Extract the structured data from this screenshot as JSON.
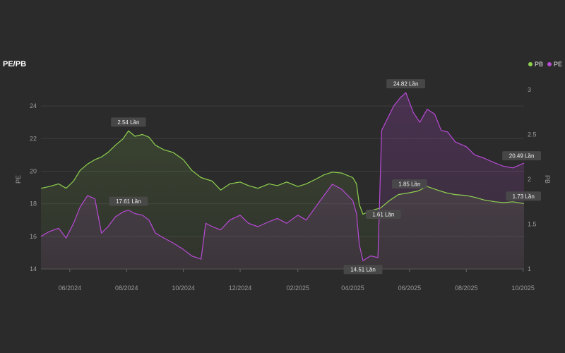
{
  "colors": {
    "background": "#2b2b2b",
    "pb": "#8fd14f",
    "pe": "#b84ad6",
    "grid": "#3d3d3d",
    "tick": "#9a9a9a",
    "annotation_bg": "#4a4a4a",
    "annotation_text": "#f0f0f0"
  },
  "chart_data": {
    "type": "area",
    "title": "PE/PB",
    "ylabel_left": "PE",
    "ylabel_right": "PB",
    "ylim_left": [
      14,
      25
    ],
    "ylim_right": [
      1,
      3
    ],
    "yticks_left": [
      "14",
      "16",
      "18",
      "20",
      "22",
      "24"
    ],
    "yticks_right": [
      "1",
      "1.5",
      "2",
      "2.5",
      "3"
    ],
    "x_range": [
      "2024-05-01",
      "2025-10-02"
    ],
    "xticks": [
      {
        "date": "2024-06-01",
        "label": "06/2024"
      },
      {
        "date": "2024-08-01",
        "label": "08/2024"
      },
      {
        "date": "2024-10-01",
        "label": "10/2024"
      },
      {
        "date": "2024-12-01",
        "label": "12/2024"
      },
      {
        "date": "2025-02-01",
        "label": "02/2025"
      },
      {
        "date": "2025-04-01",
        "label": "04/2025"
      },
      {
        "date": "2025-06-01",
        "label": "06/2025"
      },
      {
        "date": "2025-08-01",
        "label": "08/2025"
      },
      {
        "date": "2025-10-01",
        "label": "10/2025"
      }
    ],
    "grid": true,
    "legend_position": "top-right",
    "legend": [
      {
        "name": "PB",
        "color": "#8fd14f"
      },
      {
        "name": "PE",
        "color": "#b84ad6"
      }
    ],
    "series": [
      {
        "name": "PB",
        "axis": "right",
        "color": "#8fd14f",
        "points": [
          [
            "2024-05-01",
            1.9
          ],
          [
            "2024-05-10",
            1.92
          ],
          [
            "2024-05-20",
            1.95
          ],
          [
            "2024-05-28",
            1.9
          ],
          [
            "2024-06-05",
            1.98
          ],
          [
            "2024-06-12",
            2.1
          ],
          [
            "2024-06-20",
            2.17
          ],
          [
            "2024-06-28",
            2.22
          ],
          [
            "2024-07-05",
            2.25
          ],
          [
            "2024-07-12",
            2.3
          ],
          [
            "2024-07-20",
            2.38
          ],
          [
            "2024-07-28",
            2.45
          ],
          [
            "2024-08-03",
            2.54
          ],
          [
            "2024-08-10",
            2.48
          ],
          [
            "2024-08-18",
            2.5
          ],
          [
            "2024-08-25",
            2.47
          ],
          [
            "2024-09-01",
            2.38
          ],
          [
            "2024-09-10",
            2.33
          ],
          [
            "2024-09-20",
            2.3
          ],
          [
            "2024-10-01",
            2.22
          ],
          [
            "2024-10-10",
            2.1
          ],
          [
            "2024-10-20",
            2.02
          ],
          [
            "2024-11-01",
            1.98
          ],
          [
            "2024-11-10",
            1.88
          ],
          [
            "2024-11-20",
            1.95
          ],
          [
            "2024-12-01",
            1.97
          ],
          [
            "2024-12-10",
            1.93
          ],
          [
            "2024-12-20",
            1.9
          ],
          [
            "2025-01-01",
            1.95
          ],
          [
            "2025-01-10",
            1.93
          ],
          [
            "2025-01-20",
            1.97
          ],
          [
            "2025-02-01",
            1.92
          ],
          [
            "2025-02-10",
            1.95
          ],
          [
            "2025-02-20",
            2.0
          ],
          [
            "2025-03-01",
            2.05
          ],
          [
            "2025-03-10",
            2.08
          ],
          [
            "2025-03-20",
            2.07
          ],
          [
            "2025-04-01",
            2.02
          ],
          [
            "2025-04-05",
            1.95
          ],
          [
            "2025-04-08",
            1.72
          ],
          [
            "2025-04-12",
            1.61
          ],
          [
            "2025-04-20",
            1.65
          ],
          [
            "2025-05-01",
            1.68
          ],
          [
            "2025-05-10",
            1.76
          ],
          [
            "2025-05-20",
            1.83
          ],
          [
            "2025-06-01",
            1.85
          ],
          [
            "2025-06-10",
            1.87
          ],
          [
            "2025-06-20",
            1.92
          ],
          [
            "2025-07-01",
            1.88
          ],
          [
            "2025-07-10",
            1.85
          ],
          [
            "2025-07-20",
            1.83
          ],
          [
            "2025-08-01",
            1.82
          ],
          [
            "2025-08-10",
            1.8
          ],
          [
            "2025-08-20",
            1.77
          ],
          [
            "2025-09-01",
            1.75
          ],
          [
            "2025-09-10",
            1.74
          ],
          [
            "2025-09-20",
            1.75
          ],
          [
            "2025-10-02",
            1.73
          ]
        ]
      },
      {
        "name": "PE",
        "axis": "left",
        "color": "#b84ad6",
        "points": [
          [
            "2024-05-01",
            16.0
          ],
          [
            "2024-05-10",
            16.3
          ],
          [
            "2024-05-20",
            16.5
          ],
          [
            "2024-05-28",
            15.9
          ],
          [
            "2024-06-05",
            16.8
          ],
          [
            "2024-06-12",
            17.8
          ],
          [
            "2024-06-20",
            18.5
          ],
          [
            "2024-06-28",
            18.3
          ],
          [
            "2024-07-05",
            16.2
          ],
          [
            "2024-07-12",
            16.6
          ],
          [
            "2024-07-20",
            17.2
          ],
          [
            "2024-07-28",
            17.5
          ],
          [
            "2024-08-03",
            17.61
          ],
          [
            "2024-08-10",
            17.4
          ],
          [
            "2024-08-18",
            17.3
          ],
          [
            "2024-08-25",
            17.0
          ],
          [
            "2024-09-01",
            16.2
          ],
          [
            "2024-09-10",
            15.9
          ],
          [
            "2024-09-20",
            15.6
          ],
          [
            "2024-10-01",
            15.2
          ],
          [
            "2024-10-10",
            14.8
          ],
          [
            "2024-10-20",
            14.6
          ],
          [
            "2024-10-25",
            16.8
          ],
          [
            "2024-11-01",
            16.6
          ],
          [
            "2024-11-10",
            16.4
          ],
          [
            "2024-11-20",
            17.0
          ],
          [
            "2024-12-01",
            17.3
          ],
          [
            "2024-12-10",
            16.8
          ],
          [
            "2024-12-20",
            16.6
          ],
          [
            "2025-01-01",
            16.9
          ],
          [
            "2025-01-10",
            17.1
          ],
          [
            "2025-01-20",
            16.8
          ],
          [
            "2025-02-01",
            17.3
          ],
          [
            "2025-02-10",
            17.0
          ],
          [
            "2025-02-20",
            17.8
          ],
          [
            "2025-03-01",
            18.5
          ],
          [
            "2025-03-10",
            19.2
          ],
          [
            "2025-03-20",
            18.9
          ],
          [
            "2025-04-01",
            18.2
          ],
          [
            "2025-04-05",
            17.4
          ],
          [
            "2025-04-08",
            15.5
          ],
          [
            "2025-04-12",
            14.51
          ],
          [
            "2025-04-20",
            14.8
          ],
          [
            "2025-04-28",
            14.7
          ],
          [
            "2025-05-02",
            22.5
          ],
          [
            "2025-05-08",
            23.2
          ],
          [
            "2025-05-15",
            24.0
          ],
          [
            "2025-05-22",
            24.5
          ],
          [
            "2025-05-28",
            24.82
          ],
          [
            "2025-06-05",
            23.6
          ],
          [
            "2025-06-12",
            23.0
          ],
          [
            "2025-06-20",
            23.8
          ],
          [
            "2025-06-28",
            23.5
          ],
          [
            "2025-07-05",
            22.5
          ],
          [
            "2025-07-12",
            22.4
          ],
          [
            "2025-07-20",
            21.8
          ],
          [
            "2025-08-01",
            21.5
          ],
          [
            "2025-08-10",
            21.0
          ],
          [
            "2025-08-20",
            20.8
          ],
          [
            "2025-09-01",
            20.5
          ],
          [
            "2025-09-10",
            20.3
          ],
          [
            "2025-09-20",
            20.2
          ],
          [
            "2025-10-02",
            20.49
          ]
        ]
      }
    ],
    "annotations": [
      {
        "text": "2.54 Lần",
        "series": "PB",
        "date": "2024-08-03",
        "value": 2.54,
        "pos": "above"
      },
      {
        "text": "17.61 Lần",
        "series": "PE",
        "date": "2024-08-03",
        "value": 17.61,
        "pos": "above"
      },
      {
        "text": "1.61 Lần",
        "series": "PB",
        "date": "2025-04-12",
        "value": 1.61,
        "pos": "right"
      },
      {
        "text": "14.51 Lần",
        "series": "PE",
        "date": "2025-04-12",
        "value": 14.51,
        "pos": "below"
      },
      {
        "text": "24.82 Lần",
        "series": "PE",
        "date": "2025-05-28",
        "value": 24.82,
        "pos": "above"
      },
      {
        "text": "1.85 Lần",
        "series": "PB",
        "date": "2025-06-01",
        "value": 1.85,
        "pos": "above"
      },
      {
        "text": "20.49 Lần",
        "series": "PE",
        "date": "2025-10-02",
        "value": 20.49,
        "pos": "above-left"
      },
      {
        "text": "1.73 Lần",
        "series": "PB",
        "date": "2025-10-02",
        "value": 1.73,
        "pos": "above-left"
      }
    ]
  }
}
